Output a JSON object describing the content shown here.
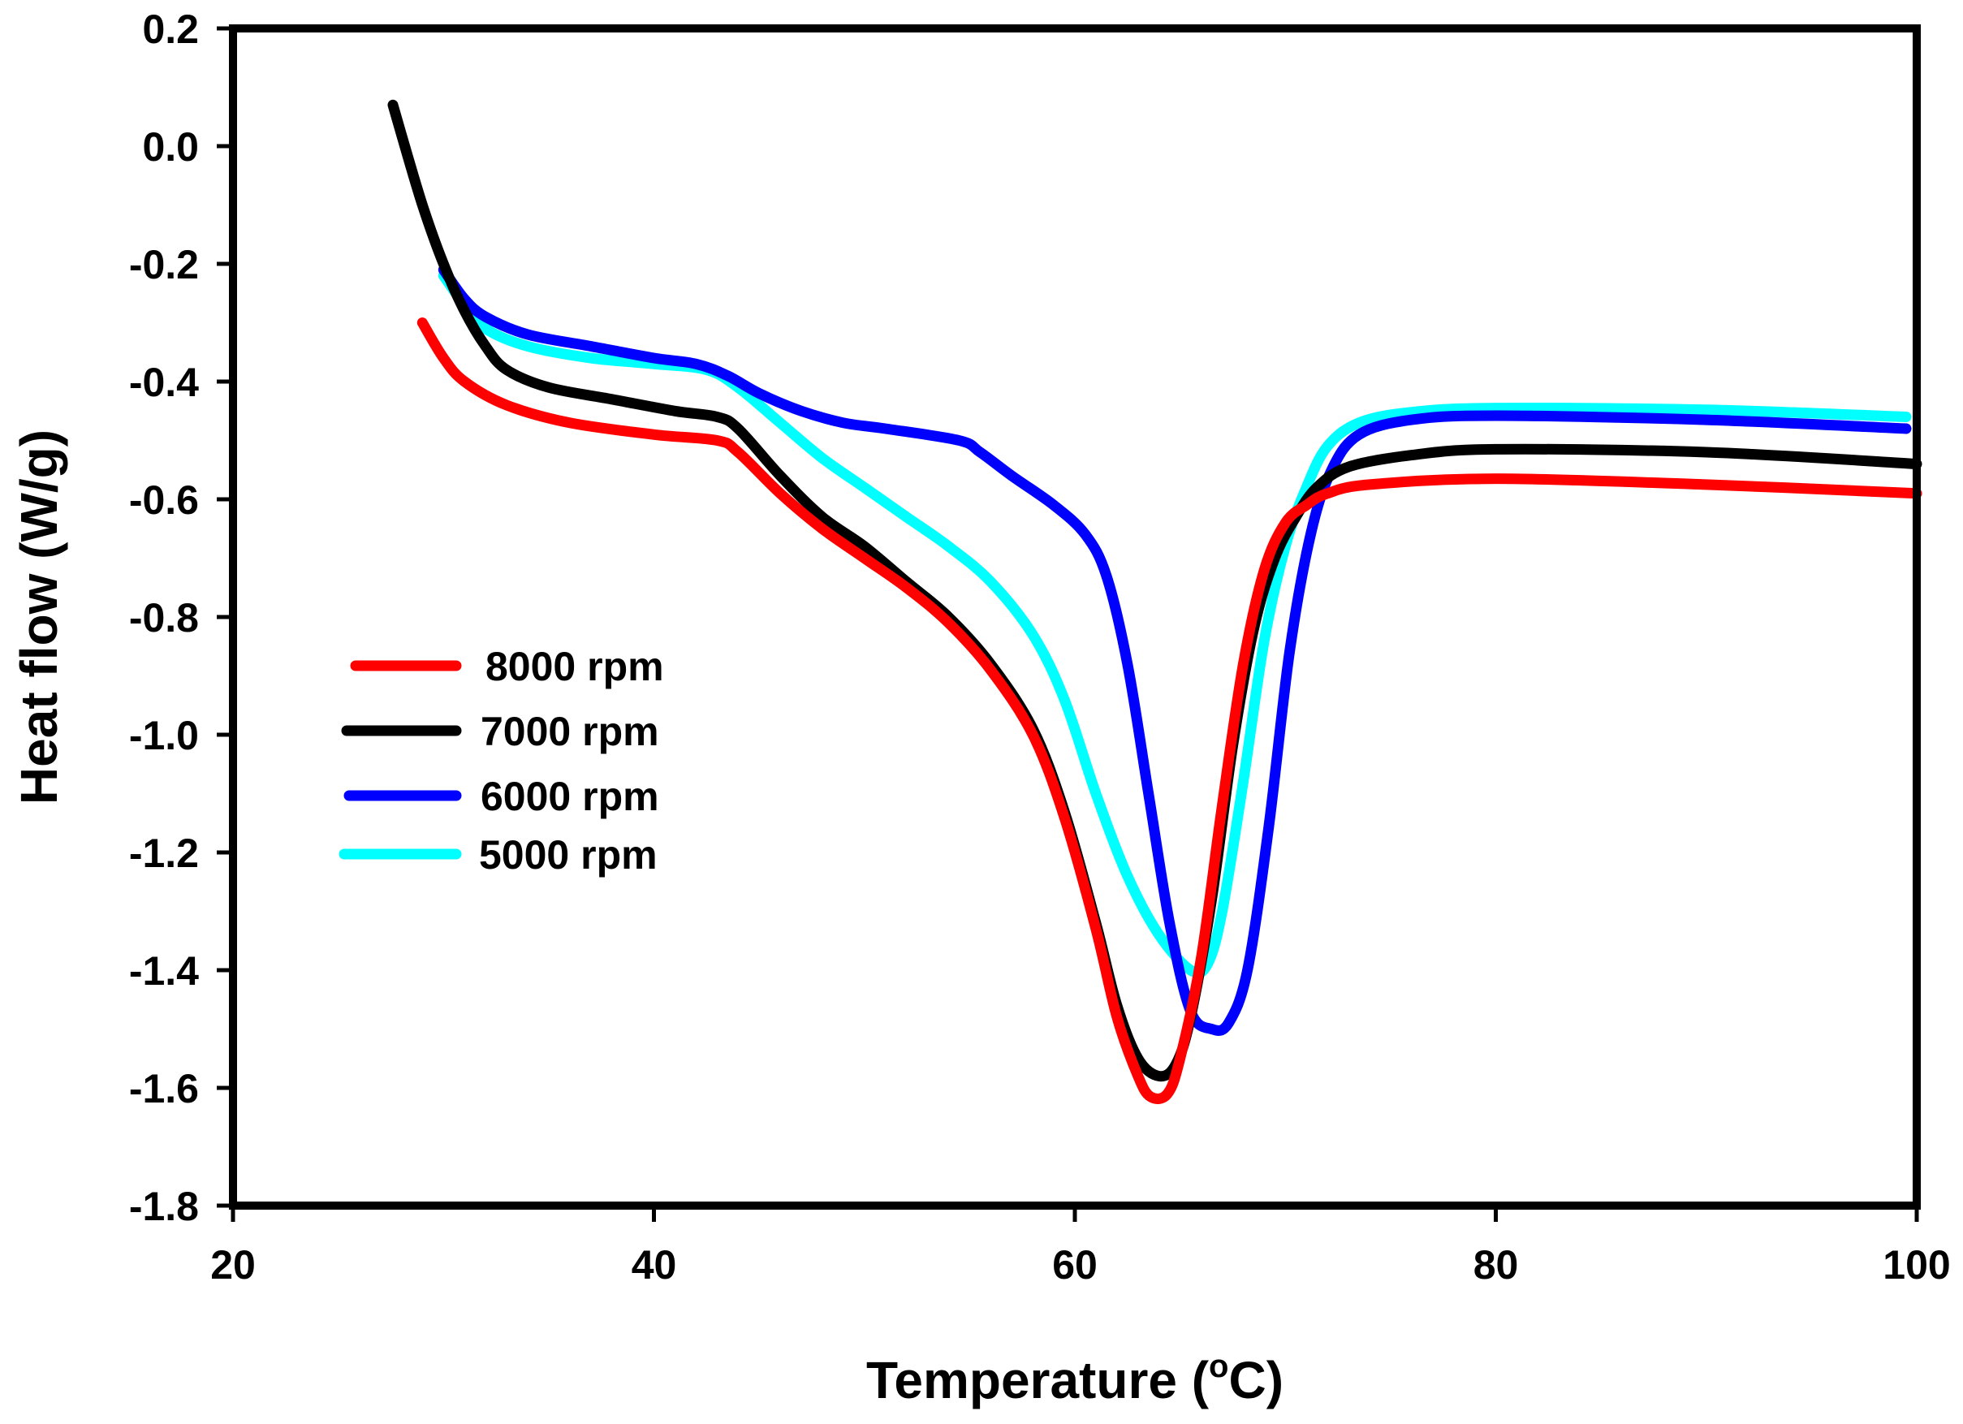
{
  "chart_data": {
    "type": "line",
    "title": "",
    "xlabel": "Temperature (",
    "xlabel_degree": "o",
    "xlabel_unit": "C)",
    "ylabel": "Heat flow (W/g)",
    "xlim": [
      20,
      100
    ],
    "ylim": [
      -1.8,
      0.2
    ],
    "xticks": [
      20,
      40,
      60,
      80,
      100
    ],
    "xtick_labels": [
      "20",
      "40",
      "60",
      "80",
      "100"
    ],
    "yticks": [
      0.2,
      0.0,
      -0.2,
      -0.4,
      -0.6,
      -0.8,
      -1.0,
      -1.2,
      -1.4,
      -1.6,
      -1.8
    ],
    "ytick_labels": [
      "0.2",
      "0.0",
      "-0.2",
      "-0.4",
      "-0.6",
      "-0.8",
      "-1.0",
      "-1.2",
      "-1.4",
      "-1.6",
      "-1.8"
    ],
    "grid": false,
    "legend_position": "left-center",
    "series": [
      {
        "name": "8000 rpm",
        "color": "#ff0000",
        "points": [
          [
            29,
            -0.3
          ],
          [
            30,
            -0.36
          ],
          [
            31,
            -0.4
          ],
          [
            33,
            -0.44
          ],
          [
            36,
            -0.47
          ],
          [
            40,
            -0.49
          ],
          [
            43,
            -0.5
          ],
          [
            44,
            -0.52
          ],
          [
            46,
            -0.59
          ],
          [
            48,
            -0.65
          ],
          [
            50,
            -0.7
          ],
          [
            52,
            -0.75
          ],
          [
            54,
            -0.81
          ],
          [
            56,
            -0.89
          ],
          [
            58,
            -1.0
          ],
          [
            59.5,
            -1.14
          ],
          [
            61,
            -1.33
          ],
          [
            62,
            -1.48
          ],
          [
            63,
            -1.58
          ],
          [
            63.6,
            -1.615
          ],
          [
            64.4,
            -1.61
          ],
          [
            65,
            -1.55
          ],
          [
            66,
            -1.38
          ],
          [
            67,
            -1.12
          ],
          [
            68,
            -0.88
          ],
          [
            69,
            -0.72
          ],
          [
            70,
            -0.64
          ],
          [
            71,
            -0.61
          ],
          [
            72,
            -0.59
          ],
          [
            74,
            -0.575
          ],
          [
            80,
            -0.565
          ],
          [
            90,
            -0.575
          ],
          [
            100,
            -0.59
          ]
        ]
      },
      {
        "name": "7000 rpm",
        "color": "#000000",
        "points": [
          [
            27.6,
            0.07
          ],
          [
            28,
            0.02
          ],
          [
            29,
            -0.1
          ],
          [
            30,
            -0.2
          ],
          [
            31,
            -0.28
          ],
          [
            32,
            -0.34
          ],
          [
            33,
            -0.38
          ],
          [
            35,
            -0.41
          ],
          [
            38,
            -0.43
          ],
          [
            41,
            -0.45
          ],
          [
            43,
            -0.46
          ],
          [
            44,
            -0.48
          ],
          [
            46,
            -0.56
          ],
          [
            48,
            -0.63
          ],
          [
            50,
            -0.68
          ],
          [
            52,
            -0.74
          ],
          [
            54,
            -0.8
          ],
          [
            56,
            -0.88
          ],
          [
            58,
            -0.99
          ],
          [
            59.5,
            -1.13
          ],
          [
            61,
            -1.32
          ],
          [
            62,
            -1.46
          ],
          [
            63,
            -1.55
          ],
          [
            64,
            -1.58
          ],
          [
            64.8,
            -1.56
          ],
          [
            65.5,
            -1.48
          ],
          [
            66.5,
            -1.28
          ],
          [
            67.5,
            -1.02
          ],
          [
            68.5,
            -0.82
          ],
          [
            69.5,
            -0.7
          ],
          [
            70.5,
            -0.63
          ],
          [
            71.5,
            -0.58
          ],
          [
            73,
            -0.545
          ],
          [
            76,
            -0.525
          ],
          [
            80,
            -0.515
          ],
          [
            90,
            -0.52
          ],
          [
            100,
            -0.54
          ]
        ]
      },
      {
        "name": "6000 rpm",
        "color": "#0000ff",
        "points": [
          [
            30,
            -0.21
          ],
          [
            31,
            -0.26
          ],
          [
            32,
            -0.29
          ],
          [
            34,
            -0.32
          ],
          [
            37,
            -0.34
          ],
          [
            40,
            -0.36
          ],
          [
            42,
            -0.37
          ],
          [
            43.5,
            -0.39
          ],
          [
            45,
            -0.42
          ],
          [
            47,
            -0.45
          ],
          [
            49,
            -0.47
          ],
          [
            51,
            -0.48
          ],
          [
            54.5,
            -0.5
          ],
          [
            55.5,
            -0.52
          ],
          [
            57,
            -0.56
          ],
          [
            59,
            -0.61
          ],
          [
            60.5,
            -0.66
          ],
          [
            61.5,
            -0.73
          ],
          [
            62.5,
            -0.88
          ],
          [
            63.5,
            -1.1
          ],
          [
            64.5,
            -1.32
          ],
          [
            65.5,
            -1.47
          ],
          [
            66.5,
            -1.5
          ],
          [
            67.3,
            -1.49
          ],
          [
            68.2,
            -1.4
          ],
          [
            69.2,
            -1.16
          ],
          [
            70.2,
            -0.86
          ],
          [
            71.2,
            -0.66
          ],
          [
            72.2,
            -0.55
          ],
          [
            73.5,
            -0.49
          ],
          [
            76,
            -0.465
          ],
          [
            80,
            -0.458
          ],
          [
            90,
            -0.465
          ],
          [
            99.5,
            -0.48
          ]
        ]
      },
      {
        "name": "5000 rpm",
        "color": "#00ffff",
        "points": [
          [
            30,
            -0.22
          ],
          [
            31,
            -0.27
          ],
          [
            32,
            -0.31
          ],
          [
            34,
            -0.34
          ],
          [
            37,
            -0.36
          ],
          [
            40,
            -0.37
          ],
          [
            42.5,
            -0.38
          ],
          [
            44,
            -0.41
          ],
          [
            46,
            -0.47
          ],
          [
            48,
            -0.53
          ],
          [
            50,
            -0.58
          ],
          [
            52,
            -0.63
          ],
          [
            54,
            -0.68
          ],
          [
            56,
            -0.74
          ],
          [
            58,
            -0.83
          ],
          [
            59.5,
            -0.94
          ],
          [
            61,
            -1.1
          ],
          [
            62.5,
            -1.24
          ],
          [
            64,
            -1.34
          ],
          [
            65.5,
            -1.4
          ],
          [
            66.3,
            -1.39
          ],
          [
            67,
            -1.3
          ],
          [
            68,
            -1.08
          ],
          [
            69,
            -0.84
          ],
          [
            70,
            -0.68
          ],
          [
            71,
            -0.58
          ],
          [
            72,
            -0.51
          ],
          [
            73.5,
            -0.47
          ],
          [
            76,
            -0.452
          ],
          [
            80,
            -0.445
          ],
          [
            90,
            -0.448
          ],
          [
            99.5,
            -0.46
          ]
        ]
      }
    ]
  }
}
